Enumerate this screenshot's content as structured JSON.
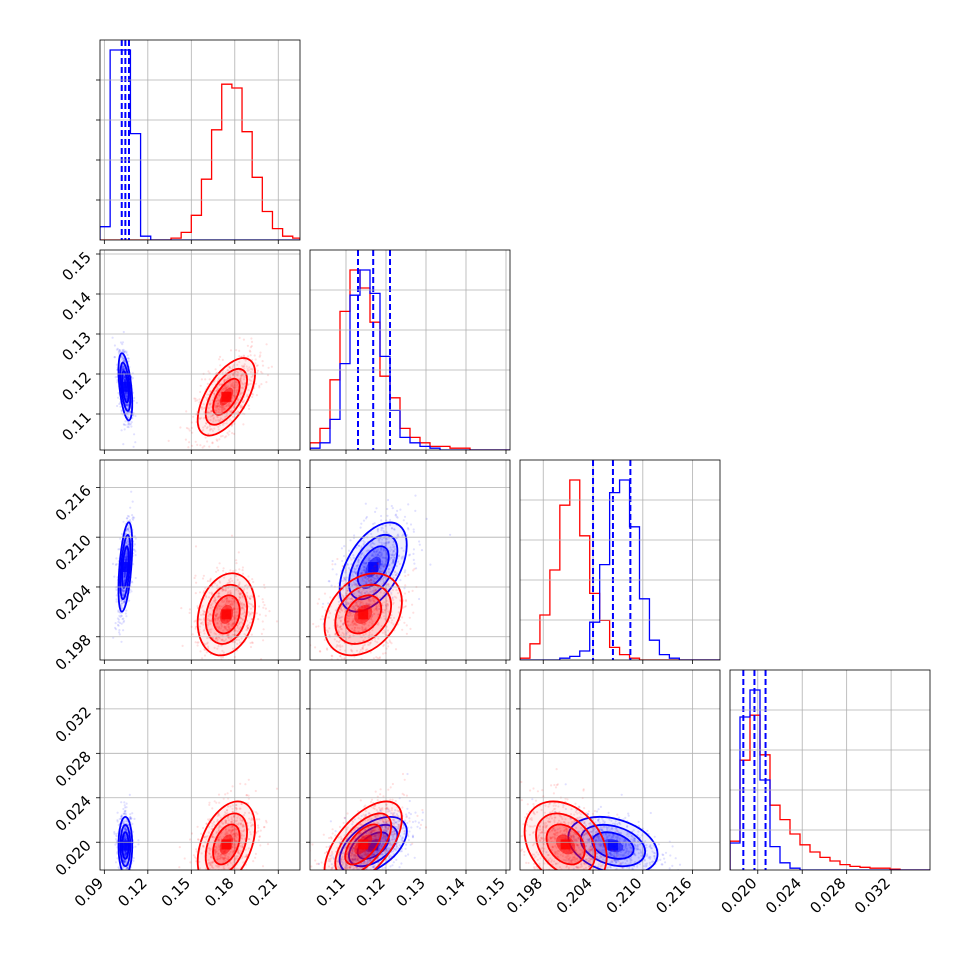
{
  "colors": {
    "series_a": "#0000ff",
    "series_b": "#ff0000",
    "grid": "#b0b0b0",
    "frame": "#000000"
  },
  "chart_data": {
    "type": "corner",
    "parameter_count": 4,
    "grid": true,
    "axes": [
      {
        "range": [
          0.087,
          0.225
        ],
        "ticks": [
          0.09,
          0.12,
          0.15,
          0.18,
          0.21
        ],
        "tick_labels": [
          "0.09",
          "0.12",
          "0.15",
          "0.18",
          "0.21"
        ]
      },
      {
        "range": [
          0.101,
          0.151
        ],
        "ticks": [
          0.11,
          0.12,
          0.13,
          0.14,
          0.15
        ],
        "tick_labels": [
          "0.11",
          "0.12",
          "0.13",
          "0.14",
          "0.15"
        ]
      },
      {
        "range": [
          0.1952,
          0.2193
        ],
        "ticks": [
          0.198,
          0.204,
          0.21,
          0.216
        ],
        "tick_labels": [
          "0.198",
          "0.204",
          "0.210",
          "0.216"
        ]
      },
      {
        "range": [
          0.0175,
          0.0355
        ],
        "ticks": [
          0.02,
          0.024,
          0.028,
          0.032
        ],
        "tick_labels": [
          "0.020",
          "0.024",
          "0.028",
          "0.032"
        ]
      }
    ],
    "series": [
      {
        "color": "#0000ff",
        "mean": [
          0.1045,
          0.1168,
          0.2064,
          0.0197
        ],
        "std": [
          0.0022,
          0.0039,
          0.0025,
          0.0012
        ],
        "quantile_lines": [
          [
            0.102,
            0.1045,
            0.107
          ],
          [
            0.113,
            0.1168,
            0.121
          ],
          [
            0.204,
            0.2064,
            0.2085
          ],
          [
            0.0187,
            0.0197,
            0.0207
          ]
        ],
        "correlations": [
          [
            0,
            1,
            -0.5
          ],
          [
            0,
            2,
            0.5
          ],
          [
            0,
            3,
            0.0
          ],
          [
            1,
            2,
            0.5
          ],
          [
            1,
            3,
            0.5
          ],
          [
            2,
            3,
            -0.3
          ]
        ]
      },
      {
        "color": "#ff0000",
        "mean": [
          0.1742,
          0.1143,
          0.2007,
          0.0198
        ],
        "std": [
          0.0092,
          0.0045,
          0.0023,
          0.0018
        ],
        "quantile_lines": [],
        "correlations": [
          [
            0,
            1,
            0.6
          ],
          [
            0,
            2,
            0.2
          ],
          [
            0,
            3,
            0.4
          ],
          [
            1,
            2,
            0.3
          ],
          [
            1,
            3,
            0.6
          ],
          [
            2,
            3,
            -0.3
          ]
        ]
      }
    ],
    "hist1d": [
      {
        "edges": [
          0.087,
          0.094,
          0.101,
          0.108,
          0.115,
          0.122,
          0.129,
          0.136,
          0.143,
          0.15,
          0.157,
          0.164,
          0.171,
          0.178,
          0.185,
          0.192,
          0.199,
          0.206,
          0.213,
          0.22,
          0.225
        ],
        "series_a": [
          0.07,
          1.0,
          1.0,
          0.56,
          0.02,
          0,
          0,
          0,
          0,
          0,
          0,
          0,
          0,
          0,
          0,
          0,
          0,
          0,
          0,
          0
        ],
        "series_b": [
          0,
          0,
          0,
          0,
          0,
          0,
          0,
          0.01,
          0.04,
          0.13,
          0.32,
          0.58,
          0.82,
          0.8,
          0.57,
          0.33,
          0.15,
          0.06,
          0.02,
          0.01
        ]
      },
      {
        "edges": [
          0.101,
          0.1035,
          0.106,
          0.1085,
          0.111,
          0.1135,
          0.116,
          0.1185,
          0.121,
          0.1235,
          0.126,
          0.1285,
          0.131,
          0.1335,
          0.136,
          0.1385,
          0.141,
          0.1435,
          0.146,
          0.1485,
          0.151
        ],
        "series_a": [
          0.01,
          0.04,
          0.17,
          0.48,
          0.86,
          1.0,
          0.87,
          0.52,
          0.22,
          0.07,
          0.04,
          0.02,
          0.01,
          0,
          0,
          0,
          0,
          0,
          0,
          0
        ],
        "series_b": [
          0.04,
          0.12,
          0.39,
          0.77,
          1.0,
          0.9,
          0.71,
          0.41,
          0.29,
          0.12,
          0.07,
          0.04,
          0.02,
          0.02,
          0.01,
          0.01,
          0,
          0,
          0,
          0
        ]
      },
      {
        "edges": [
          0.1952,
          0.1964,
          0.1976,
          0.1988,
          0.2,
          0.2012,
          0.2024,
          0.2036,
          0.2048,
          0.206,
          0.2072,
          0.2084,
          0.2096,
          0.2108,
          0.212,
          0.2132,
          0.2144,
          0.2156,
          0.2168,
          0.218,
          0.2193
        ],
        "series_a": [
          0,
          0,
          0,
          0,
          0.01,
          0.02,
          0.05,
          0.21,
          0.53,
          0.93,
          1.0,
          0.74,
          0.34,
          0.11,
          0.03,
          0.01,
          0,
          0,
          0,
          0
        ],
        "series_b": [
          0.01,
          0.09,
          0.25,
          0.5,
          0.86,
          1.0,
          0.69,
          0.37,
          0.22,
          0.07,
          0.03,
          0.01,
          0,
          0,
          0,
          0,
          0,
          0,
          0,
          0
        ]
      },
      {
        "edges": [
          0.0175,
          0.0184,
          0.0193,
          0.0202,
          0.0211,
          0.022,
          0.0229,
          0.0238,
          0.0247,
          0.0256,
          0.0265,
          0.0274,
          0.0283,
          0.0292,
          0.0301,
          0.031,
          0.0319,
          0.0328,
          0.0337,
          0.0346,
          0.0355
        ],
        "series_a": [
          0.15,
          0.85,
          1.0,
          0.5,
          0.13,
          0.04,
          0.01,
          0,
          0,
          0,
          0,
          0,
          0,
          0,
          0,
          0,
          0,
          0,
          0,
          0
        ],
        "series_b": [
          0.16,
          0.61,
          0.86,
          0.64,
          0.36,
          0.28,
          0.2,
          0.14,
          0.1,
          0.07,
          0.05,
          0.03,
          0.02,
          0.015,
          0.01,
          0.01,
          0.005,
          0,
          0,
          0
        ]
      }
    ]
  }
}
